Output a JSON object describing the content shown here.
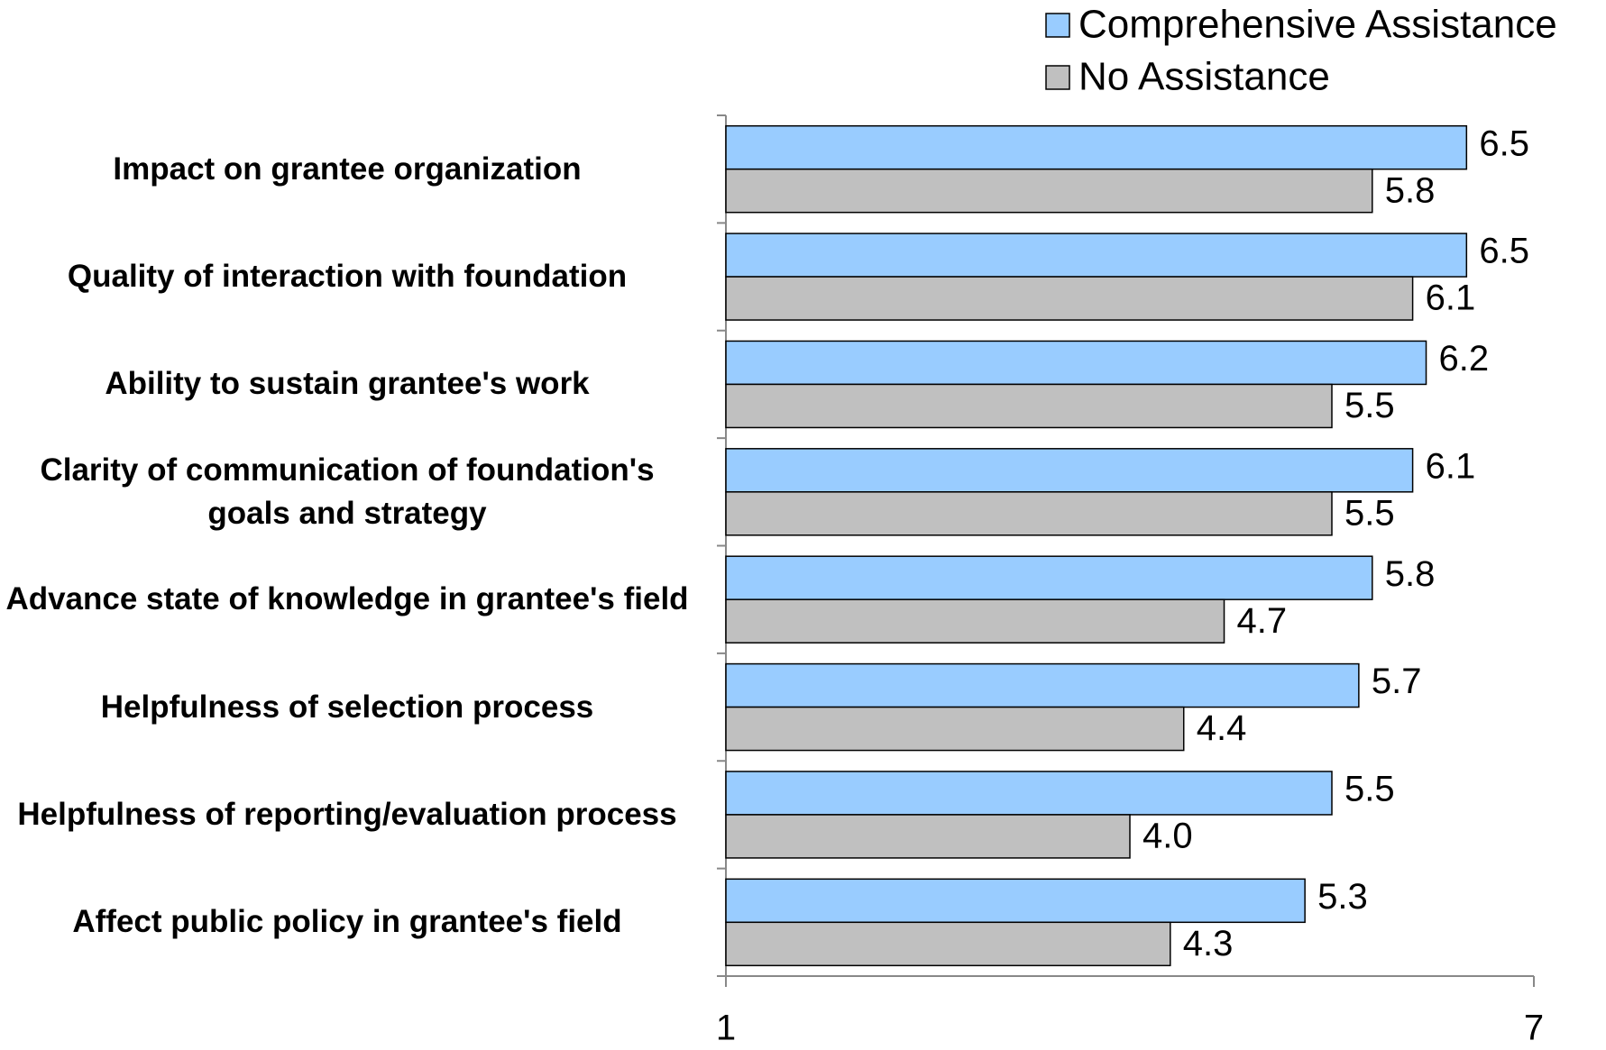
{
  "chart_data": {
    "type": "bar",
    "orientation": "horizontal",
    "categories": [
      "Impact on grantee organization",
      "Quality of interaction with foundation",
      "Ability to sustain grantee's work",
      "Clarity of communication of foundation's goals and strategy",
      "Advance state of knowledge in grantee's field",
      "Helpfulness of selection process",
      "Helpfulness of reporting/evaluation process",
      "Affect public policy in grantee's field"
    ],
    "series": [
      {
        "name": "Comprehensive Assistance",
        "color": "#99ccff",
        "values": [
          6.5,
          6.5,
          6.2,
          6.1,
          5.8,
          5.7,
          5.5,
          5.3
        ],
        "value_labels": [
          "6.5",
          "6.5",
          "6.2",
          "6.1",
          "5.8",
          "5.7",
          "5.5",
          "5.3"
        ]
      },
      {
        "name": "No Assistance",
        "color": "#c0c0c0",
        "values": [
          5.8,
          6.1,
          5.5,
          5.5,
          4.7,
          4.4,
          4.0,
          4.3
        ],
        "value_labels": [
          "5.8",
          "6.1",
          "5.5",
          "5.5",
          "4.7",
          "4.4",
          "4.0",
          "4.3"
        ]
      }
    ],
    "xlim": [
      1,
      7
    ],
    "xticks": [
      1,
      7
    ],
    "legend": "top-right"
  }
}
